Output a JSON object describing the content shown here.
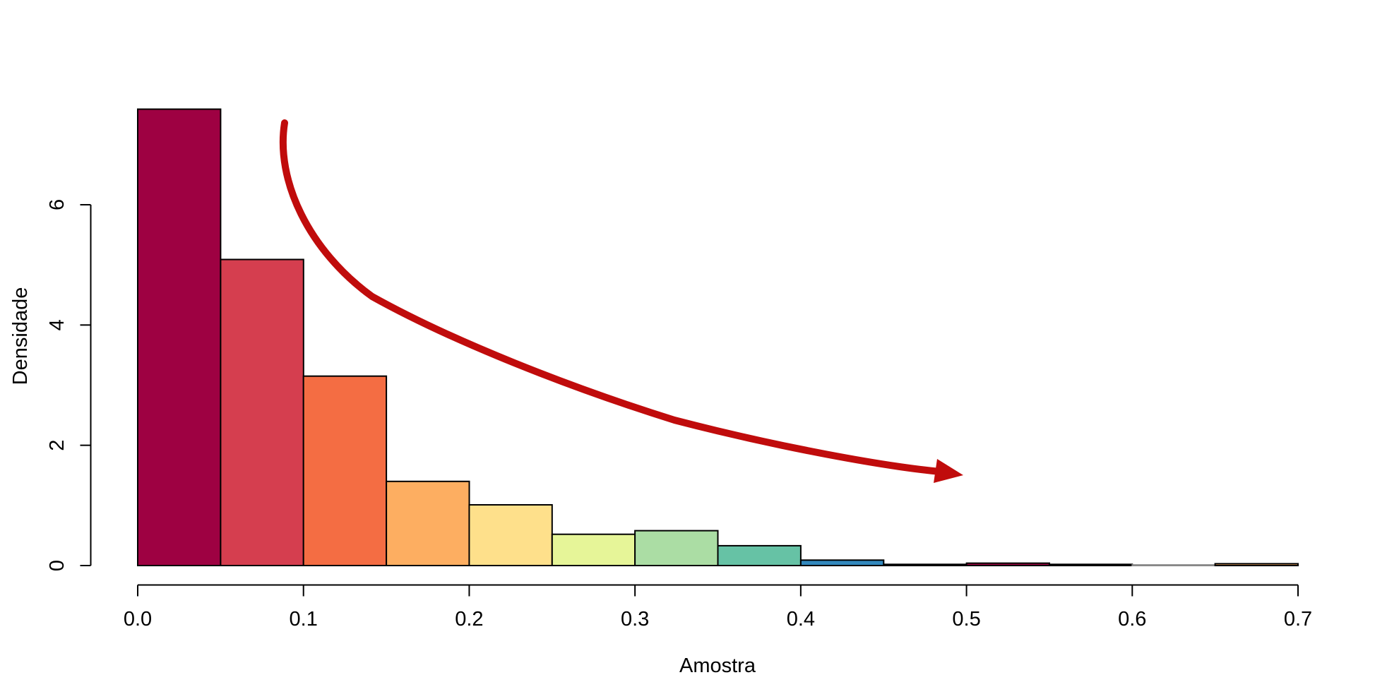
{
  "figure": {
    "background": "#FFFFFF",
    "title": ""
  },
  "chart_data": {
    "type": "bar",
    "subtype": "histogram",
    "title": "",
    "xlabel": "Amostra",
    "ylabel": "Densidade",
    "xlim": [
      0.0,
      0.7
    ],
    "ylim": [
      0,
      7.6
    ],
    "grid": false,
    "legend": "none",
    "bin_width": 0.05,
    "x_tick_values": [
      0.0,
      0.1,
      0.2,
      0.3,
      0.4,
      0.5,
      0.6,
      0.7
    ],
    "x_tick_labels": [
      "0.0",
      "0.1",
      "0.2",
      "0.3",
      "0.4",
      "0.5",
      "0.6",
      "0.7"
    ],
    "y_tick_values": [
      0,
      2,
      4,
      6
    ],
    "y_tick_labels": [
      "0",
      "2",
      "4",
      "6"
    ],
    "bar_border_color": "#000000",
    "palette_colors": [
      "#9E0142",
      "#D53E4F",
      "#F46D43",
      "#FDAE61",
      "#FEE08B",
      "#E6F598",
      "#ABDDA4",
      "#66C2A5",
      "#3288BD",
      "#5E4FA2"
    ],
    "bins": [
      {
        "x0": 0.0,
        "x1": 0.05,
        "density": 7.59,
        "color": "#9E0142"
      },
      {
        "x0": 0.05,
        "x1": 0.1,
        "density": 5.09,
        "color": "#D53E4F"
      },
      {
        "x0": 0.1,
        "x1": 0.15,
        "density": 3.15,
        "color": "#F46D43"
      },
      {
        "x0": 0.15,
        "x1": 0.2,
        "density": 1.4,
        "color": "#FDAE61"
      },
      {
        "x0": 0.2,
        "x1": 0.25,
        "density": 1.01,
        "color": "#FEE08B"
      },
      {
        "x0": 0.25,
        "x1": 0.3,
        "density": 0.52,
        "color": "#E6F598"
      },
      {
        "x0": 0.3,
        "x1": 0.35,
        "density": 0.58,
        "color": "#ABDDA4"
      },
      {
        "x0": 0.35,
        "x1": 0.4,
        "density": 0.33,
        "color": "#66C2A5"
      },
      {
        "x0": 0.4,
        "x1": 0.45,
        "density": 0.09,
        "color": "#3288BD"
      },
      {
        "x0": 0.45,
        "x1": 0.5,
        "density": 0.02,
        "color": "#5E4FA2"
      },
      {
        "x0": 0.5,
        "x1": 0.55,
        "density": 0.04,
        "color": "#9E0142"
      },
      {
        "x0": 0.55,
        "x1": 0.6,
        "density": 0.02,
        "color": "#D53E4F"
      },
      {
        "x0": 0.6,
        "x1": 0.65,
        "density": 0.01,
        "color": "#F46D43",
        "border": "#888888"
      },
      {
        "x0": 0.65,
        "x1": 0.7,
        "density": 0.03,
        "color": "#FDAE61"
      }
    ],
    "annotation": {
      "type": "curved-arrow",
      "color": "#C00C0C",
      "from_data": [
        0.09,
        7.35
      ],
      "to_data": [
        0.5,
        1.5
      ],
      "description": "red curved arrow sweeping from top of tallest bars down toward distribution tail"
    }
  }
}
